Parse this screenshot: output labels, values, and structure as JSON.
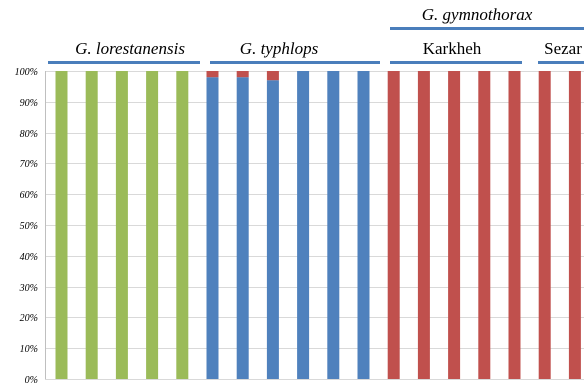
{
  "chart_data": {
    "type": "bar",
    "stacked": true,
    "percent": true,
    "ylim": [
      0,
      100
    ],
    "yticks": [
      "0%",
      "10%",
      "20%",
      "30%",
      "40%",
      "50%",
      "60%",
      "70%",
      "80%",
      "90%",
      "100%"
    ],
    "grid": true,
    "legend": "none",
    "groups": [
      {
        "label": "G. lorestanensis",
        "italic": true
      },
      {
        "label": "G. typhlops",
        "italic": true
      },
      {
        "label": "G. gymnothorax",
        "italic": true
      },
      {
        "label": "Karkheh",
        "italic": false
      },
      {
        "label": "Sezar",
        "italic": false
      }
    ],
    "series": [
      {
        "color": "#9bbb59",
        "values": [
          100,
          100,
          100,
          100,
          100,
          0,
          0,
          0,
          0,
          0,
          0,
          0,
          0,
          0,
          0,
          0,
          0,
          0,
          0
        ]
      },
      {
        "color": "#4f81bd",
        "values": [
          0,
          0,
          0,
          0,
          0,
          98,
          98,
          97,
          100,
          100,
          100,
          0,
          0,
          0,
          0,
          0,
          0,
          0,
          0
        ]
      },
      {
        "color": "#c0504d",
        "values": [
          0,
          0,
          0,
          0,
          0,
          2,
          2,
          3,
          0,
          0,
          0,
          100,
          100,
          100,
          100,
          100,
          100,
          100,
          100
        ]
      }
    ]
  }
}
